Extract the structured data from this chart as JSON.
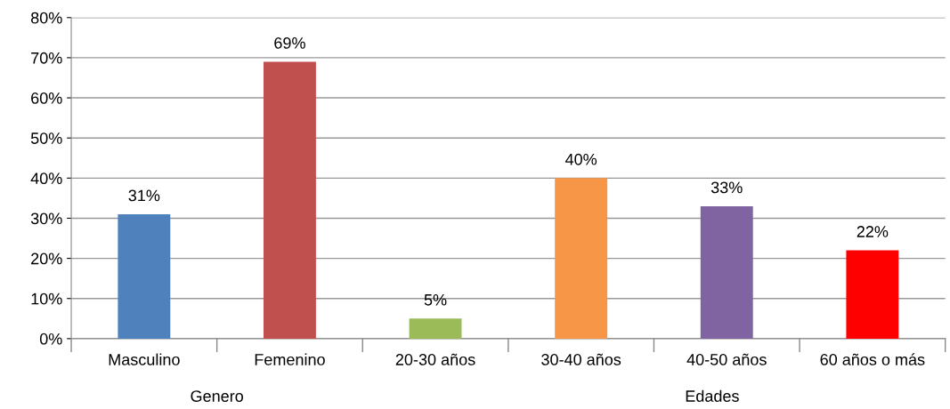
{
  "chart_data": {
    "type": "bar",
    "categories": [
      "Masculino",
      "Femenino",
      "20-30 años",
      "30-40 años",
      "40-50 años",
      "60 años o más"
    ],
    "values": [
      31,
      69,
      5,
      40,
      33,
      22
    ],
    "colors": [
      "#4f81bd",
      "#c0504d",
      "#9bbb59",
      "#f79646",
      "#8064a2",
      "#ff0000"
    ],
    "value_labels": [
      "31%",
      "69%",
      "5%",
      "40%",
      "33%",
      "22%"
    ],
    "ylim": [
      0,
      80
    ],
    "yticks": [
      {
        "value": 0,
        "label": "0%"
      },
      {
        "value": 10,
        "label": "10%"
      },
      {
        "value": 20,
        "label": "20%"
      },
      {
        "value": 30,
        "label": "30%"
      },
      {
        "value": 40,
        "label": "40%"
      },
      {
        "value": 50,
        "label": "50%"
      },
      {
        "value": 60,
        "label": "60%"
      },
      {
        "value": 70,
        "label": "70%"
      },
      {
        "value": 80,
        "label": "80%"
      }
    ],
    "grid": "y",
    "annotations": [
      "Genero",
      "Edades"
    ]
  }
}
